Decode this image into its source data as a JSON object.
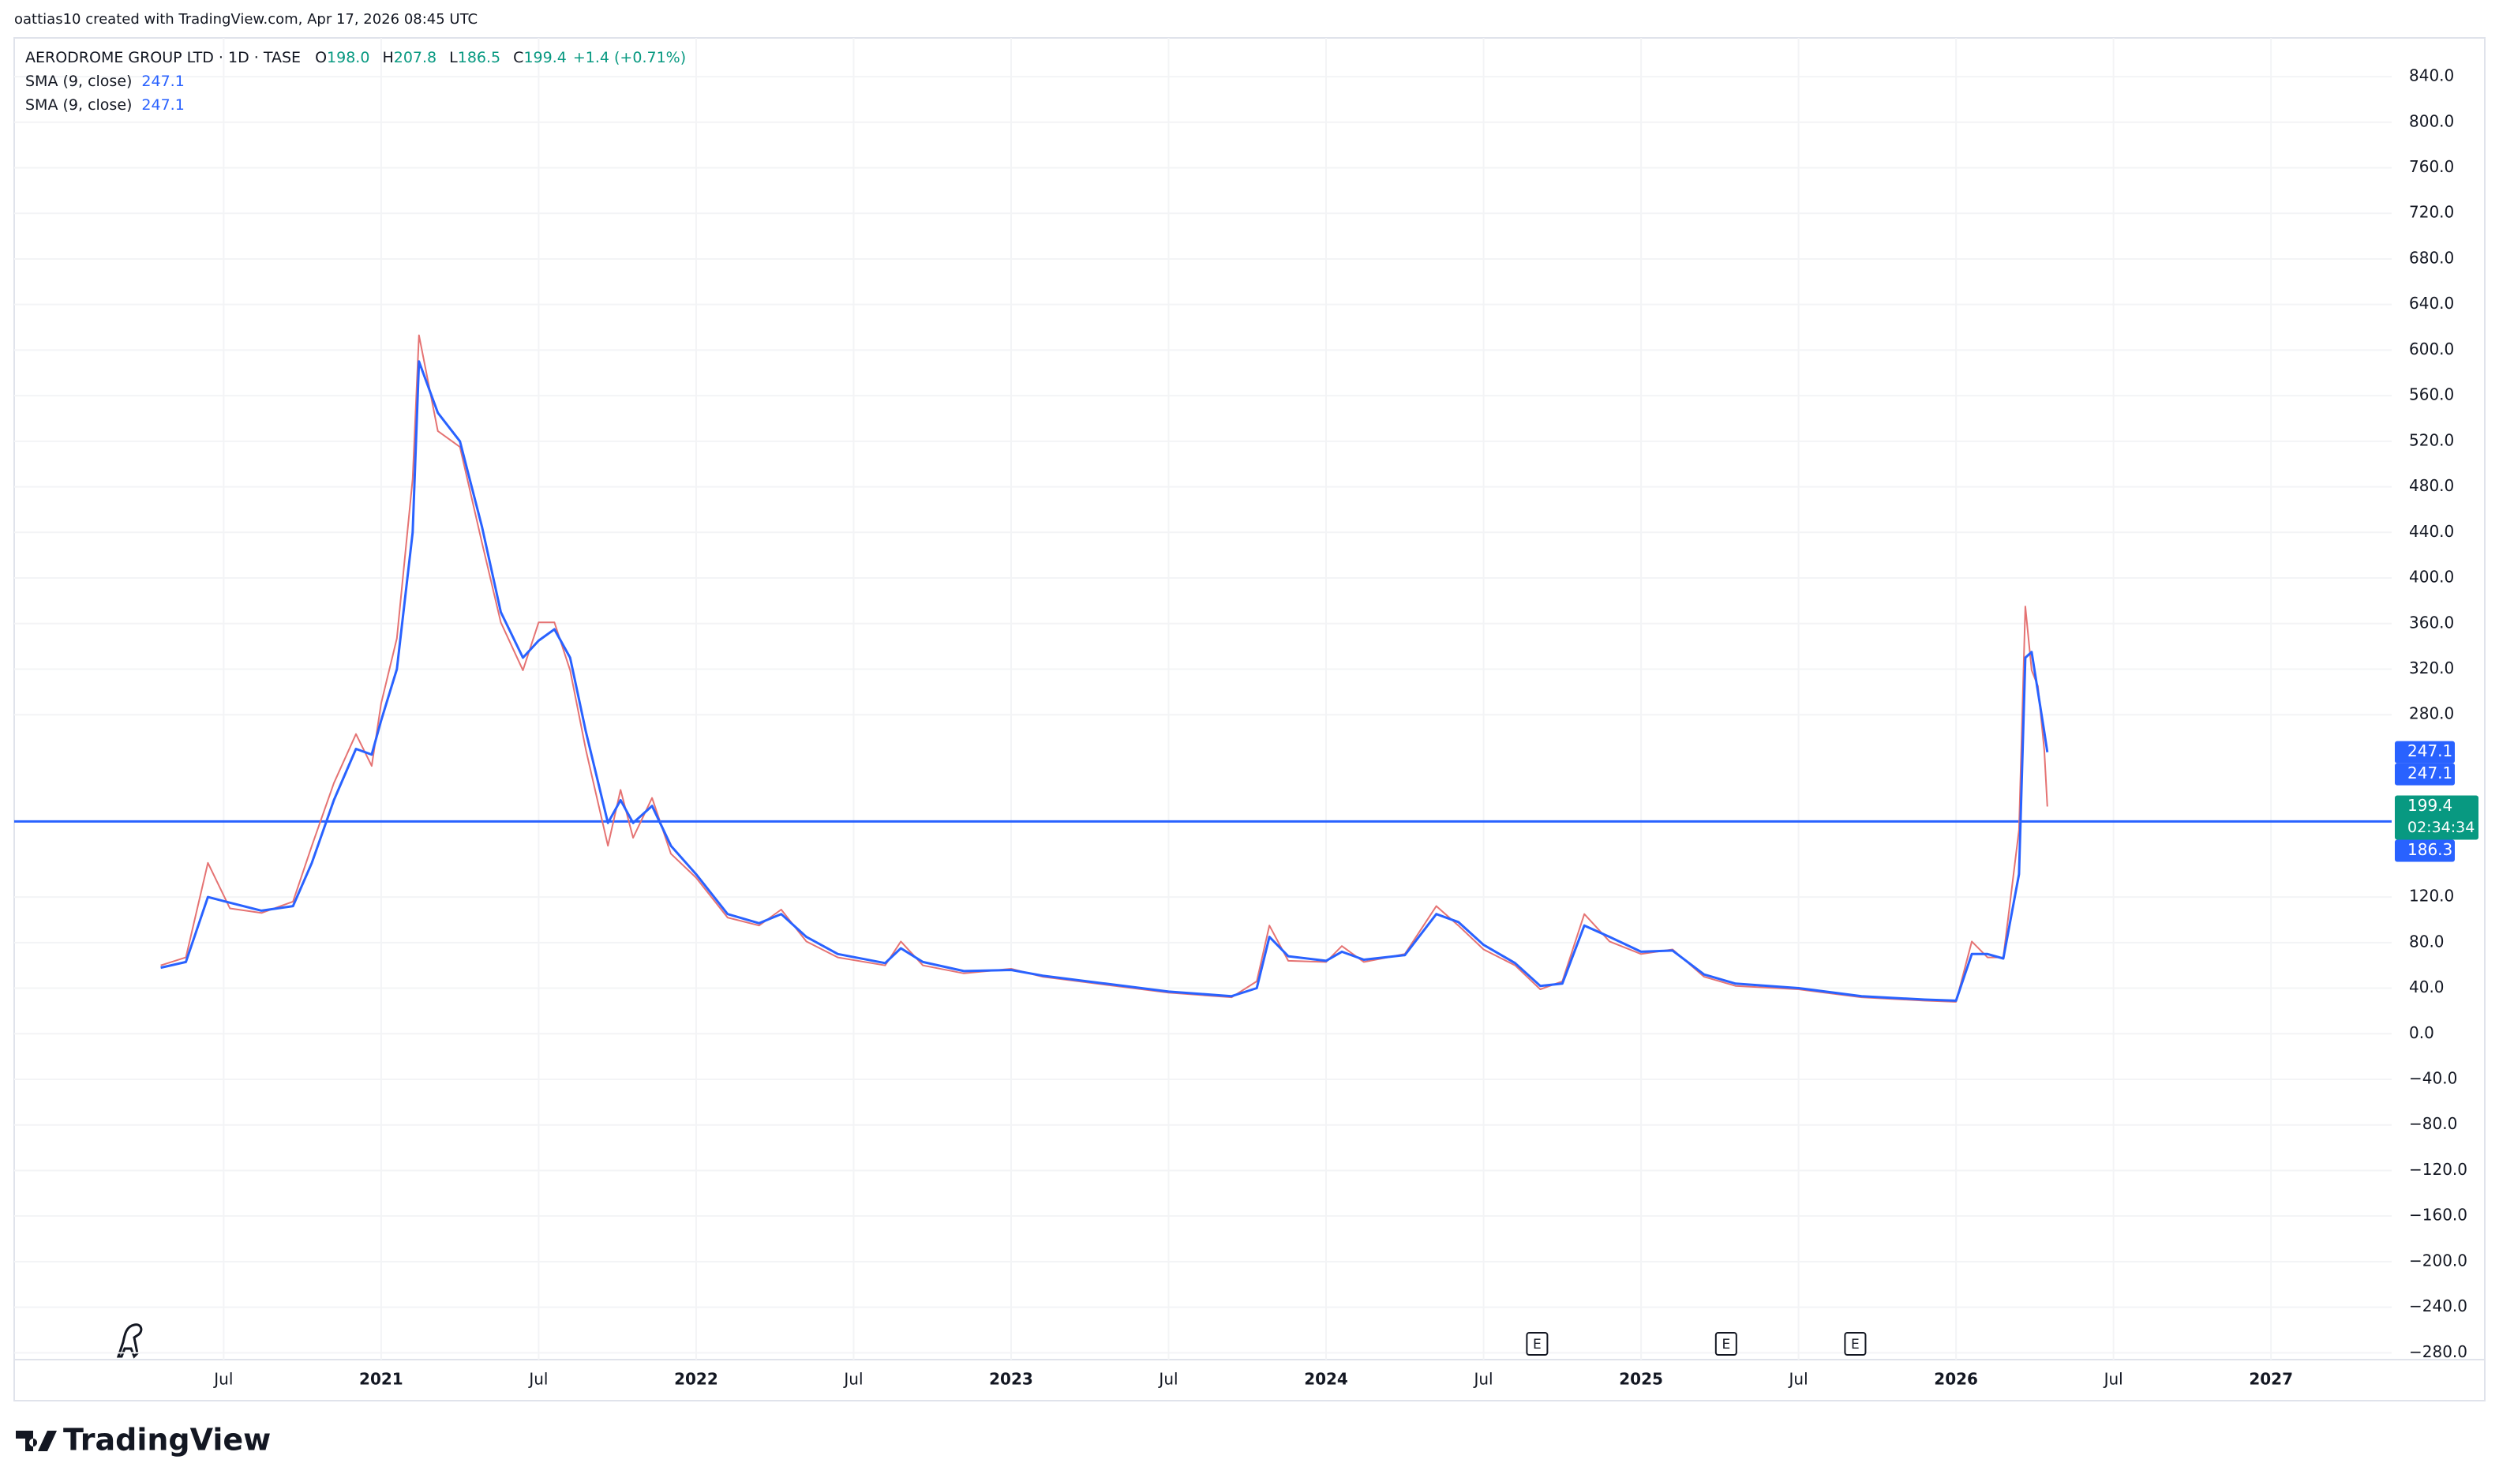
{
  "header": {
    "credit": "oattias10 created with TradingView.com, Apr 17, 2026 08:45 UTC",
    "symbol": "AERODROME GROUP LTD · 1D · TASE",
    "ohlc": [
      {
        "key": "O",
        "value": "198.0"
      },
      {
        "key": "H",
        "value": "207.8"
      },
      {
        "key": "L",
        "value": "186.5"
      },
      {
        "key": "C",
        "value": "199.4"
      }
    ],
    "change": "+1.4 (+0.71%)",
    "indicators": [
      {
        "name": "SMA (9, close)",
        "value": 247.1
      },
      {
        "name": "SMA (9, close)",
        "value": 247.1
      }
    ]
  },
  "logo": "TradingView",
  "chart_data": {
    "type": "line",
    "x": [
      2020.3,
      2020.38,
      2020.45,
      2020.52,
      2020.62,
      2020.72,
      2020.78,
      2020.85,
      2020.92,
      2020.97,
      2021.0,
      2021.05,
      2021.1,
      2021.12,
      2021.18,
      2021.25,
      2021.32,
      2021.38,
      2021.45,
      2021.5,
      2021.55,
      2021.6,
      2021.65,
      2021.72,
      2021.76,
      2021.8,
      2021.86,
      2021.92,
      2022.0,
      2022.1,
      2022.2,
      2022.27,
      2022.35,
      2022.45,
      2022.6,
      2022.65,
      2022.72,
      2022.85,
      2023.0,
      2023.1,
      2023.3,
      2023.5,
      2023.7,
      2023.78,
      2023.82,
      2023.88,
      2024.0,
      2024.05,
      2024.12,
      2024.25,
      2024.35,
      2024.42,
      2024.5,
      2024.6,
      2024.68,
      2024.75,
      2024.82,
      2024.9,
      2025.0,
      2025.1,
      2025.2,
      2025.3,
      2025.5,
      2025.7,
      2025.9,
      2026.0,
      2026.05,
      2026.1,
      2026.15,
      2026.2,
      2026.22,
      2026.24,
      2026.26,
      2026.28,
      2026.29
    ],
    "series": [
      {
        "color": "#e57373",
        "values": [
          60,
          67,
          150,
          110,
          106,
          116,
          165,
          220,
          263,
          235,
          290,
          347,
          487,
          613,
          529,
          515,
          431,
          361,
          319,
          361,
          361,
          319,
          249,
          165,
          214,
          172,
          207,
          158,
          137,
          102,
          95,
          109,
          81,
          67,
          60,
          81,
          60,
          53,
          57,
          50,
          43,
          36,
          32,
          46,
          95,
          64,
          63,
          77,
          63,
          70,
          112,
          95,
          74,
          60,
          39,
          46,
          105,
          81,
          70,
          74,
          50,
          42,
          39,
          32,
          29,
          28,
          81,
          67,
          67,
          179,
          375,
          319,
          305,
          249,
          199.4
        ]
      },
      {
        "name": "SMA (9, close)",
        "color": "#2962ff",
        "values": [
          58,
          63,
          120,
          115,
          108,
          112,
          150,
          205,
          250,
          245,
          275,
          320,
          440,
          590,
          545,
          520,
          445,
          370,
          330,
          345,
          355,
          330,
          265,
          185,
          205,
          185,
          200,
          165,
          140,
          105,
          97,
          105,
          85,
          70,
          62,
          75,
          63,
          55,
          56,
          51,
          44,
          37,
          33,
          40,
          85,
          68,
          64,
          72,
          65,
          69,
          105,
          98,
          78,
          62,
          42,
          44,
          95,
          85,
          72,
          73,
          52,
          44,
          40,
          33,
          30,
          29,
          70,
          70,
          66,
          140,
          330,
          335,
          300,
          265,
          247.1
        ]
      }
    ],
    "xlim": [
      2019.835,
      2027.383
    ],
    "xticks": [
      {
        "value": 2020.5,
        "label": "Jul"
      },
      {
        "value": 2021,
        "label": "2021"
      },
      {
        "value": 2021.5,
        "label": "Jul"
      },
      {
        "value": 2022,
        "label": "2022"
      },
      {
        "value": 2022.5,
        "label": "Jul"
      },
      {
        "value": 2023,
        "label": "2023"
      },
      {
        "value": 2023.5,
        "label": "Jul"
      },
      {
        "value": 2024,
        "label": "2024"
      },
      {
        "value": 2024.5,
        "label": "Jul"
      },
      {
        "value": 2025,
        "label": "2025"
      },
      {
        "value": 2025.5,
        "label": "Jul"
      },
      {
        "value": 2026,
        "label": "2026"
      },
      {
        "value": 2026.5,
        "label": "Jul"
      },
      {
        "value": 2027,
        "label": "2027"
      }
    ],
    "ylim": [
      -286,
      874
    ],
    "yticks": [
      {
        "value": -280,
        "label": "−280.0"
      },
      {
        "value": -240,
        "label": "−240.0"
      },
      {
        "value": -200,
        "label": "−200.0"
      },
      {
        "value": -160,
        "label": "−160.0"
      },
      {
        "value": -120,
        "label": "−120.0"
      },
      {
        "value": -80,
        "label": "−80.0"
      },
      {
        "value": -40,
        "label": "−40.0"
      },
      {
        "value": 0,
        "label": "0.0"
      },
      {
        "value": 40,
        "label": "40.0"
      },
      {
        "value": 80,
        "label": "80.0"
      },
      {
        "value": 120,
        "label": "120.0"
      },
      {
        "value": 280,
        "label": "280.0"
      },
      {
        "value": 320,
        "label": "320.0"
      },
      {
        "value": 360,
        "label": "360.0"
      },
      {
        "value": 400,
        "label": "400.0"
      },
      {
        "value": 440,
        "label": "440.0"
      },
      {
        "value": 480,
        "label": "480.0"
      },
      {
        "value": 520,
        "label": "520.0"
      },
      {
        "value": 560,
        "label": "560.0"
      },
      {
        "value": 600,
        "label": "600.0"
      },
      {
        "value": 640,
        "label": "640.0"
      },
      {
        "value": 680,
        "label": "680.0"
      },
      {
        "value": 720,
        "label": "720.0"
      },
      {
        "value": 760,
        "label": "760.0"
      },
      {
        "value": 800,
        "label": "800.0"
      },
      {
        "value": 840,
        "label": "840.0"
      }
    ],
    "grid": true,
    "hline": {
      "value": 186.3,
      "color": "#2962ff"
    },
    "price_labels": [
      {
        "value": 247.1,
        "color": "#2962ff"
      },
      {
        "value": 247.1,
        "color": "#2962ff"
      },
      {
        "value": 199.4,
        "color": "#089981",
        "countdown": "02:34:34"
      },
      {
        "value": 186.3,
        "color": "#2962ff"
      }
    ],
    "events": [
      {
        "x": 2024.67,
        "label": "E"
      },
      {
        "x": 2025.27,
        "label": "E"
      },
      {
        "x": 2025.68,
        "label": "E"
      }
    ]
  }
}
